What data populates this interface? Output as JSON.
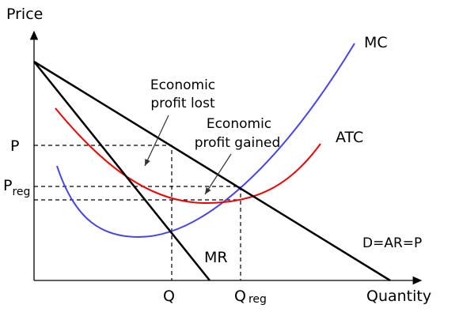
{
  "axes": {
    "y_label": "Price",
    "x_label": "Quantity"
  },
  "curves": {
    "mc": "MC",
    "atc": "ATC",
    "mr": "MR",
    "demand": "D=AR=P"
  },
  "price_labels": {
    "p": "P",
    "p_reg": {
      "main": "P",
      "sub": "reg"
    }
  },
  "quantity_labels": {
    "q": "Q",
    "q_reg": {
      "main": "Q",
      "sub": "reg"
    }
  },
  "annotations": {
    "lost": [
      "Economic",
      "profit lost"
    ],
    "gained": [
      "Economic",
      "profit gained"
    ]
  }
}
